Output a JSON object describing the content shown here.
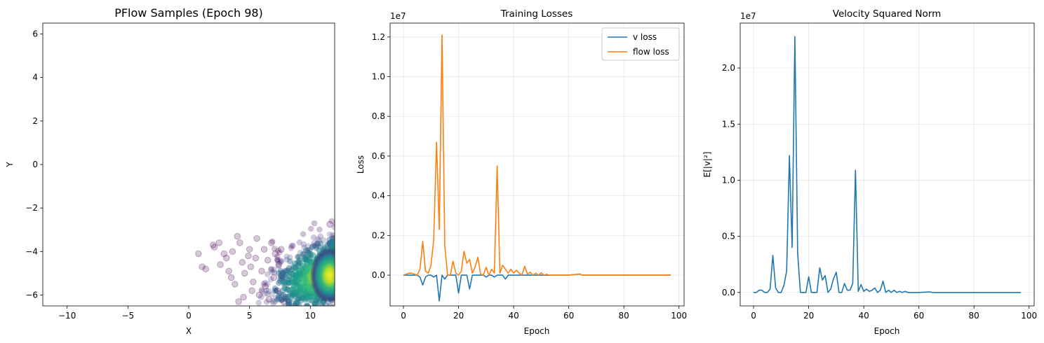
{
  "chart_data": [
    {
      "type": "scatter",
      "title": "PFlow Samples (Epoch 98)",
      "xlabel": "X",
      "ylabel": "Y",
      "xlim": [
        -12,
        12
      ],
      "ylim": [
        -6.5,
        6.5
      ],
      "xticks": [
        -10,
        -5,
        0,
        5,
        10
      ],
      "yticks": [
        -6,
        -4,
        -2,
        0,
        2,
        4,
        6
      ],
      "grid": false,
      "colormap": "viridis",
      "outlier_points": [
        [
          0.8,
          -4.1
        ],
        [
          1.1,
          -4.7
        ],
        [
          1.4,
          -4.8
        ],
        [
          2.0,
          -3.7
        ],
        [
          2.1,
          -3.8
        ],
        [
          2.5,
          -3.6
        ],
        [
          2.6,
          -4.6
        ],
        [
          2.9,
          -4.1
        ],
        [
          3.1,
          -4.3
        ],
        [
          3.3,
          -4.9
        ],
        [
          3.6,
          -4.0
        ],
        [
          3.8,
          -5.5
        ],
        [
          4.0,
          -3.3
        ],
        [
          4.2,
          -3.6
        ],
        [
          4.4,
          -4.5
        ],
        [
          4.5,
          -6.1
        ],
        [
          4.6,
          -5.0
        ],
        [
          4.9,
          -4.2
        ],
        [
          5.0,
          -3.9
        ],
        [
          5.1,
          -4.7
        ],
        [
          5.3,
          -5.4
        ],
        [
          5.5,
          -4.3
        ],
        [
          5.6,
          -3.4
        ],
        [
          5.8,
          -6.0
        ],
        [
          6.0,
          -4.9
        ],
        [
          6.2,
          -3.9
        ],
        [
          6.3,
          -5.6
        ],
        [
          6.5,
          -4.4
        ],
        [
          6.6,
          -6.2
        ],
        [
          6.8,
          -3.6
        ],
        [
          7.0,
          -5.2
        ],
        [
          7.1,
          -4.1
        ],
        [
          7.3,
          -5.8
        ],
        [
          7.4,
          -4.6
        ],
        [
          7.6,
          -3.9
        ],
        [
          7.8,
          -6.3
        ],
        [
          11.6,
          -2.75
        ],
        [
          4.1,
          -6.3
        ],
        [
          5.2,
          -5.8
        ],
        [
          3.5,
          -5.2
        ]
      ],
      "cluster_center": [
        11.5,
        -5.0
      ],
      "cluster_spread": [
        1.6,
        0.75
      ]
    },
    {
      "type": "line",
      "title": "Training Losses",
      "xlabel": "Epoch",
      "ylabel": "Loss",
      "offset_text": "1e7",
      "xlim": [
        -4.85,
        101.85
      ],
      "ylim": [
        -0.155,
        1.27
      ],
      "xticks": [
        0,
        20,
        40,
        60,
        80,
        100
      ],
      "yticks": [
        0.0,
        0.2,
        0.4,
        0.6,
        0.8,
        1.0,
        1.2
      ],
      "ytick_labels": [
        "0.0",
        "0.2",
        "0.4",
        "0.6",
        "0.8",
        "1.0",
        "1.2"
      ],
      "grid": true,
      "legend": "top-right",
      "series": [
        {
          "name": "v loss",
          "color": "#1f77b4",
          "points": [
            [
              0,
              0
            ],
            [
              1,
              0
            ],
            [
              2,
              0
            ],
            [
              3,
              0
            ],
            [
              4,
              0
            ],
            [
              5,
              0
            ],
            [
              6,
              -0.01
            ],
            [
              7,
              -0.05
            ],
            [
              8,
              -0.01
            ],
            [
              9,
              0
            ],
            [
              10,
              0
            ],
            [
              11,
              -0.01
            ],
            [
              12,
              0
            ],
            [
              13,
              -0.13
            ],
            [
              14,
              0
            ],
            [
              15,
              -0.02
            ],
            [
              16,
              0
            ],
            [
              17,
              0
            ],
            [
              18,
              0
            ],
            [
              19,
              0
            ],
            [
              20,
              -0.09
            ],
            [
              21,
              0
            ],
            [
              22,
              0
            ],
            [
              23,
              0
            ],
            [
              24,
              -0.07
            ],
            [
              25,
              0
            ],
            [
              26,
              0
            ],
            [
              27,
              0
            ],
            [
              28,
              0
            ],
            [
              29,
              0
            ],
            [
              30,
              -0.01
            ],
            [
              31,
              0
            ],
            [
              32,
              0
            ],
            [
              33,
              -0.01
            ],
            [
              34,
              0
            ],
            [
              35,
              0
            ],
            [
              36,
              0
            ],
            [
              37,
              -0.02
            ],
            [
              38,
              0
            ],
            [
              39,
              0
            ],
            [
              40,
              0
            ],
            [
              45,
              0
            ],
            [
              50,
              0
            ],
            [
              60,
              0
            ],
            [
              64,
              0.005
            ],
            [
              65,
              0
            ],
            [
              70,
              0
            ],
            [
              80,
              0
            ],
            [
              90,
              0
            ],
            [
              97,
              0
            ]
          ]
        },
        {
          "name": "flow loss",
          "color": "#ff7f0e",
          "points": [
            [
              0,
              0
            ],
            [
              1,
              0.005
            ],
            [
              2,
              0.01
            ],
            [
              3,
              0.01
            ],
            [
              4,
              0.005
            ],
            [
              5,
              0.0
            ],
            [
              6,
              0.03
            ],
            [
              7,
              0.17
            ],
            [
              8,
              0.02
            ],
            [
              9,
              0.01
            ],
            [
              10,
              0.05
            ],
            [
              11,
              0.18
            ],
            [
              12,
              0.67
            ],
            [
              13,
              0.23
            ],
            [
              14,
              1.21
            ],
            [
              15,
              0.15
            ],
            [
              16,
              0.0
            ],
            [
              17,
              0.0
            ],
            [
              18,
              0.07
            ],
            [
              19,
              0.01
            ],
            [
              20,
              0.0
            ],
            [
              21,
              0.02
            ],
            [
              22,
              0.12
            ],
            [
              23,
              0.06
            ],
            [
              24,
              0.08
            ],
            [
              25,
              0.01
            ],
            [
              26,
              0.04
            ],
            [
              27,
              0.09
            ],
            [
              28,
              0.005
            ],
            [
              29,
              0.0
            ],
            [
              30,
              0.04
            ],
            [
              31,
              0.0
            ],
            [
              32,
              0.03
            ],
            [
              33,
              0.01
            ],
            [
              34,
              0.55
            ],
            [
              35,
              0.01
            ],
            [
              36,
              0.05
            ],
            [
              37,
              0.03
            ],
            [
              38,
              0.01
            ],
            [
              39,
              0.03
            ],
            [
              40,
              0.01
            ],
            [
              41,
              0.025
            ],
            [
              42,
              0.01
            ],
            [
              43,
              0.0
            ],
            [
              44,
              0.045
            ],
            [
              45,
              0.005
            ],
            [
              46,
              0.015
            ],
            [
              47,
              0.0
            ],
            [
              48,
              0.01
            ],
            [
              49,
              0.0
            ],
            [
              50,
              0.012
            ],
            [
              51,
              0.0
            ],
            [
              52,
              0.004
            ],
            [
              53,
              0.0
            ],
            [
              55,
              0.0
            ],
            [
              60,
              0.0
            ],
            [
              64,
              0.005
            ],
            [
              65,
              0.0
            ],
            [
              70,
              0.0
            ],
            [
              80,
              0.0
            ],
            [
              90,
              0.0
            ],
            [
              97,
              0.0
            ]
          ]
        }
      ]
    },
    {
      "type": "line",
      "title": "Velocity Squared Norm",
      "xlabel": "Epoch",
      "ylabel": "E[|v|²]",
      "offset_text": "1e7",
      "xlim": [
        -4.85,
        101.85
      ],
      "ylim": [
        -0.12,
        2.4
      ],
      "xticks": [
        0,
        20,
        40,
        60,
        80,
        100
      ],
      "yticks": [
        0.0,
        0.5,
        1.0,
        1.5,
        2.0
      ],
      "ytick_labels": [
        "0.0",
        "0.5",
        "1.0",
        "1.5",
        "2.0"
      ],
      "grid": true,
      "series": [
        {
          "name": "",
          "color": "#1f77b4",
          "points": [
            [
              0,
              0
            ],
            [
              1,
              0
            ],
            [
              2,
              0.02
            ],
            [
              3,
              0.02
            ],
            [
              4,
              0
            ],
            [
              5,
              0
            ],
            [
              6,
              0.03
            ],
            [
              7,
              0.33
            ],
            [
              8,
              0.04
            ],
            [
              9,
              0
            ],
            [
              10,
              0
            ],
            [
              11,
              0.06
            ],
            [
              12,
              0.19
            ],
            [
              13,
              1.22
            ],
            [
              14,
              0.4
            ],
            [
              15,
              2.28
            ],
            [
              16,
              0.35
            ],
            [
              17,
              0
            ],
            [
              18,
              0
            ],
            [
              19,
              0
            ],
            [
              20,
              0.14
            ],
            [
              21,
              0
            ],
            [
              22,
              0
            ],
            [
              23,
              0
            ],
            [
              24,
              0.22
            ],
            [
              25,
              0.11
            ],
            [
              26,
              0.15
            ],
            [
              27,
              0
            ],
            [
              28,
              0.03
            ],
            [
              29,
              0.12
            ],
            [
              30,
              0.18
            ],
            [
              31,
              0
            ],
            [
              32,
              0
            ],
            [
              33,
              0.08
            ],
            [
              34,
              0.02
            ],
            [
              35,
              0.02
            ],
            [
              36,
              0.08
            ],
            [
              37,
              1.09
            ],
            [
              38,
              0.01
            ],
            [
              39,
              0.07
            ],
            [
              40,
              0.01
            ],
            [
              41,
              0.03
            ],
            [
              42,
              0.01
            ],
            [
              43,
              0.02
            ],
            [
              44,
              0.04
            ],
            [
              45,
              0.0
            ],
            [
              46,
              0.02
            ],
            [
              47,
              0.1
            ],
            [
              48,
              0.0
            ],
            [
              49,
              0.02
            ],
            [
              50,
              0.0
            ],
            [
              51,
              0.02
            ],
            [
              52,
              0.0
            ],
            [
              53,
              0.01
            ],
            [
              54,
              0.0
            ],
            [
              55,
              0.01
            ],
            [
              56,
              0.0
            ],
            [
              58,
              0.0
            ],
            [
              60,
              0.0
            ],
            [
              64,
              0.005
            ],
            [
              65,
              0.0
            ],
            [
              70,
              0.0
            ],
            [
              80,
              0.0
            ],
            [
              90,
              0.0
            ],
            [
              97,
              0.0
            ]
          ]
        }
      ]
    }
  ]
}
